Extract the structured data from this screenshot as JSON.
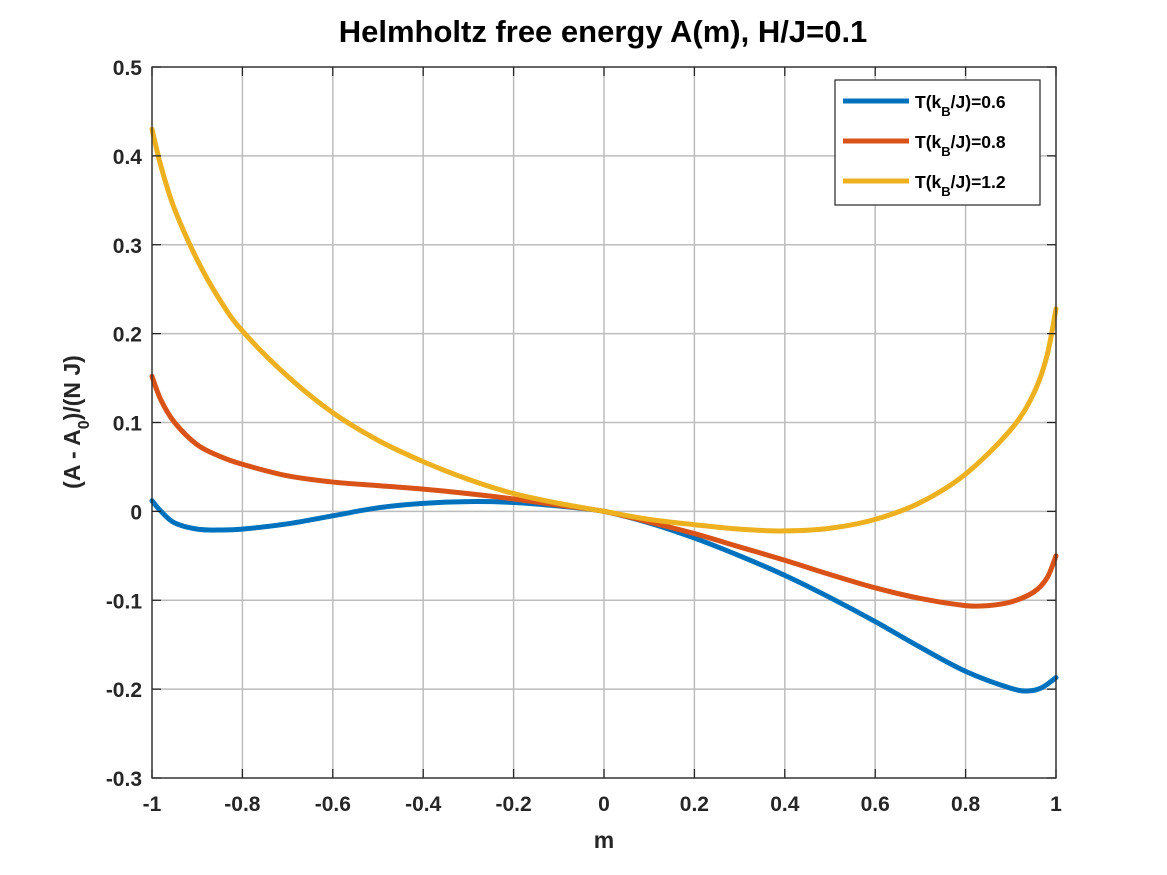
{
  "chart_data": {
    "type": "line",
    "title": "Helmholtz free energy A(m), H/J=0.1",
    "xlabel": "m",
    "ylabel": {
      "main": "(A - A",
      "sub": "0",
      "rest": ")/(N J)"
    },
    "xlim": [
      -1,
      1
    ],
    "ylim": [
      -0.3,
      0.5
    ],
    "xticks": [
      -1,
      -0.8,
      -0.6,
      -0.4,
      -0.2,
      0,
      0.2,
      0.4,
      0.6,
      0.8,
      1
    ],
    "xtick_labels": [
      "-1",
      "-0.8",
      "-0.6",
      "-0.4",
      "-0.2",
      "0",
      "0.2",
      "0.4",
      "0.6",
      "0.8",
      "1"
    ],
    "yticks": [
      -0.3,
      -0.2,
      -0.1,
      0,
      0.1,
      0.2,
      0.3,
      0.4,
      0.5
    ],
    "ytick_labels": [
      "-0.3",
      "-0.2",
      "-0.1",
      "0",
      "0.1",
      "0.2",
      "0.3",
      "0.4",
      "0.5"
    ],
    "grid": true,
    "legend_position": "top-right",
    "series": [
      {
        "name": "T(kB/J)=0.6",
        "legend": {
          "pre": "T(k",
          "sub": "B",
          "post": "/J)=0.6"
        },
        "color": "#0072BD",
        "x": [
          -1.0,
          -0.98,
          -0.95,
          -0.9,
          -0.85,
          -0.8,
          -0.7,
          -0.6,
          -0.5,
          -0.4,
          -0.3,
          -0.2,
          -0.1,
          0,
          0.1,
          0.2,
          0.3,
          0.4,
          0.5,
          0.6,
          0.7,
          0.8,
          0.9,
          0.94,
          0.97,
          1.0
        ],
        "y": [
          0.012,
          0.0,
          -0.013,
          -0.02,
          -0.021,
          -0.02,
          -0.014,
          -0.005,
          0.004,
          0.009,
          0.011,
          0.01,
          0.006,
          0,
          -0.013,
          -0.03,
          -0.05,
          -0.072,
          -0.097,
          -0.124,
          -0.153,
          -0.18,
          -0.199,
          -0.202,
          -0.198,
          -0.187
        ]
      },
      {
        "name": "T(kB/J)=0.8",
        "legend": {
          "pre": "T(k",
          "sub": "B",
          "post": "/J)=0.8"
        },
        "color": "#D95319",
        "x": [
          -1.0,
          -0.98,
          -0.95,
          -0.9,
          -0.85,
          -0.8,
          -0.7,
          -0.6,
          -0.5,
          -0.4,
          -0.3,
          -0.2,
          -0.1,
          0,
          0.1,
          0.2,
          0.3,
          0.4,
          0.5,
          0.6,
          0.7,
          0.8,
          0.85,
          0.9,
          0.95,
          0.98,
          1.0
        ],
        "y": [
          0.152,
          0.125,
          0.1,
          0.075,
          0.062,
          0.053,
          0.04,
          0.033,
          0.029,
          0.025,
          0.02,
          0.014,
          0.007,
          0,
          -0.012,
          -0.025,
          -0.04,
          -0.055,
          -0.071,
          -0.086,
          -0.098,
          -0.106,
          -0.106,
          -0.102,
          -0.091,
          -0.075,
          -0.05
        ]
      },
      {
        "name": "T(kB/J)=1.2",
        "legend": {
          "pre": "T(k",
          "sub": "B",
          "post": "/J)=1.2"
        },
        "color": "#EDB120",
        "x": [
          -1.0,
          -0.98,
          -0.95,
          -0.9,
          -0.85,
          -0.8,
          -0.7,
          -0.6,
          -0.5,
          -0.4,
          -0.3,
          -0.2,
          -0.1,
          0,
          0.1,
          0.2,
          0.3,
          0.4,
          0.5,
          0.6,
          0.7,
          0.8,
          0.9,
          0.95,
          0.98,
          1.0
        ],
        "y": [
          0.43,
          0.388,
          0.34,
          0.283,
          0.238,
          0.203,
          0.152,
          0.111,
          0.08,
          0.056,
          0.036,
          0.02,
          0.009,
          0,
          -0.009,
          -0.015,
          -0.02,
          -0.022,
          -0.019,
          -0.009,
          0.01,
          0.042,
          0.092,
          0.132,
          0.175,
          0.228
        ]
      }
    ]
  }
}
